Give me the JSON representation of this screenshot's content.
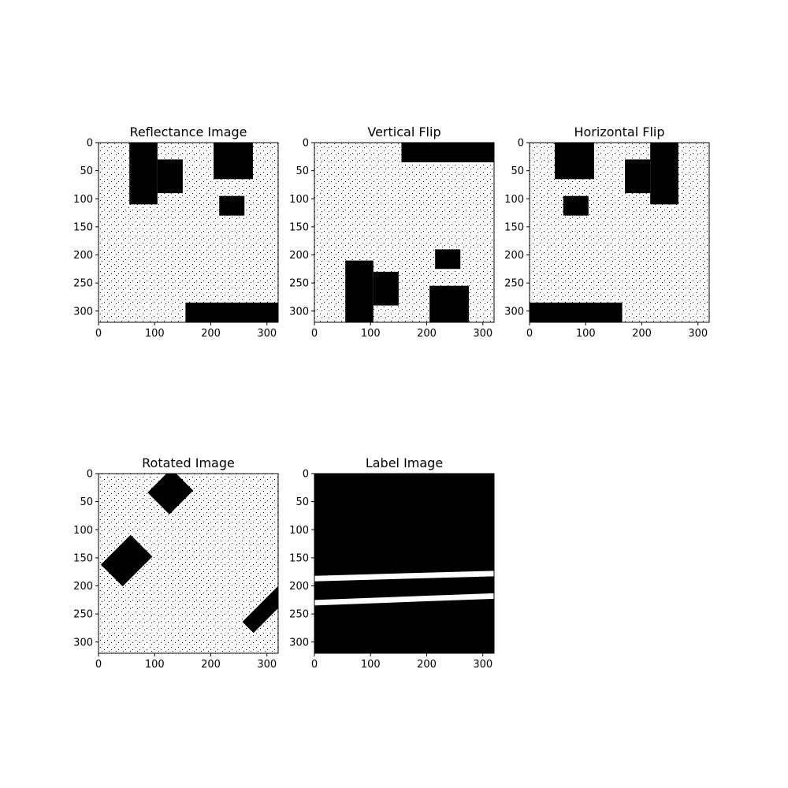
{
  "chart_data": [
    {
      "type": "image",
      "title": "Reflectance Image",
      "xlim": [
        0,
        320
      ],
      "ylim": [
        320,
        0
      ],
      "xticks": [
        0,
        100,
        200,
        300
      ],
      "yticks": [
        0,
        50,
        100,
        150,
        200,
        250,
        300
      ],
      "colormap": "binary",
      "regions_black": [
        {
          "x": [
            55,
            105
          ],
          "y": [
            0,
            110
          ]
        },
        {
          "x": [
            105,
            150
          ],
          "y": [
            30,
            90
          ]
        },
        {
          "x": [
            205,
            275
          ],
          "y": [
            0,
            65
          ]
        },
        {
          "x": [
            215,
            260
          ],
          "y": [
            95,
            130
          ]
        },
        {
          "x": [
            155,
            320
          ],
          "y": [
            285,
            320
          ]
        }
      ]
    },
    {
      "type": "image",
      "title": "Vertical Flip",
      "xlim": [
        0,
        320
      ],
      "ylim": [
        320,
        0
      ],
      "xticks": [
        0,
        100,
        200,
        300
      ],
      "yticks": [
        0,
        50,
        100,
        150,
        200,
        250,
        300
      ],
      "colormap": "binary",
      "regions_black": [
        {
          "x": [
            155,
            320
          ],
          "y": [
            0,
            35
          ]
        },
        {
          "x": [
            55,
            105
          ],
          "y": [
            210,
            320
          ]
        },
        {
          "x": [
            105,
            150
          ],
          "y": [
            230,
            290
          ]
        },
        {
          "x": [
            205,
            275
          ],
          "y": [
            255,
            320
          ]
        },
        {
          "x": [
            215,
            260
          ],
          "y": [
            190,
            225
          ]
        }
      ]
    },
    {
      "type": "image",
      "title": "Horizontal Flip",
      "xlim": [
        0,
        320
      ],
      "ylim": [
        320,
        0
      ],
      "xticks": [
        0,
        100,
        200,
        300
      ],
      "yticks": [
        0,
        50,
        100,
        150,
        200,
        250,
        300
      ],
      "colormap": "binary",
      "regions_black": [
        {
          "x": [
            215,
            265
          ],
          "y": [
            0,
            110
          ]
        },
        {
          "x": [
            170,
            215
          ],
          "y": [
            30,
            90
          ]
        },
        {
          "x": [
            45,
            115
          ],
          "y": [
            0,
            65
          ]
        },
        {
          "x": [
            60,
            105
          ],
          "y": [
            95,
            130
          ]
        },
        {
          "x": [
            0,
            165
          ],
          "y": [
            285,
            320
          ]
        }
      ]
    },
    {
      "type": "image",
      "title": "Rotated Image",
      "xlim": [
        0,
        320
      ],
      "ylim": [
        320,
        0
      ],
      "xticks": [
        0,
        100,
        200,
        300
      ],
      "yticks": [
        0,
        50,
        100,
        150,
        200,
        250,
        300
      ],
      "colormap": "binary",
      "rotated_black_regions": [
        {
          "cx": 128,
          "cy": 32,
          "w": 55,
          "h": 60,
          "angle": 45
        },
        {
          "cx": 50,
          "cy": 155,
          "w": 55,
          "h": 75,
          "angle": 45
        },
        {
          "cx": 305,
          "cy": 235,
          "w": 28,
          "h": 110,
          "angle": 45
        }
      ]
    },
    {
      "type": "image",
      "title": "Label Image",
      "xlim": [
        0,
        320
      ],
      "ylim": [
        320,
        0
      ],
      "xticks": [
        0,
        100,
        200,
        300
      ],
      "yticks": [
        0,
        50,
        100,
        150,
        200,
        250,
        300
      ],
      "colormap": "binary",
      "background": "black",
      "white_lines": [
        {
          "x": [
            0,
            320
          ],
          "y": [
            187,
            178
          ]
        },
        {
          "x": [
            0,
            320
          ],
          "y": [
            230,
            218
          ]
        }
      ]
    }
  ]
}
